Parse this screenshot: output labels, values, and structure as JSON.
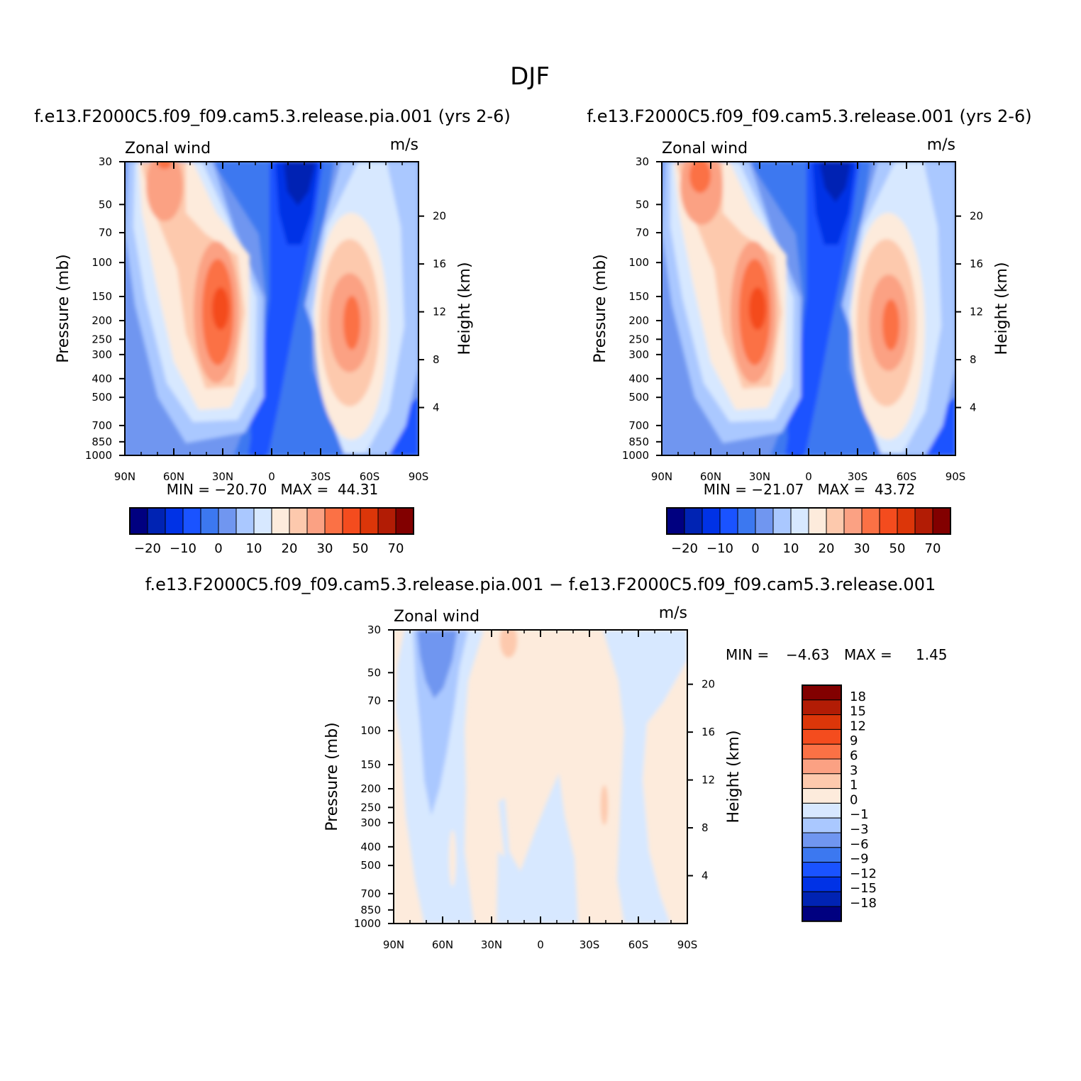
{
  "figure_title": "DJF",
  "colors": {
    "full": [
      "#000080",
      "#0023b3",
      "#0032e6",
      "#1a53ff",
      "#3c78f0",
      "#7096f0",
      "#aac8ff",
      "#d7e8ff",
      "#fdebdc",
      "#fdc9ad",
      "#fba183",
      "#fb7145",
      "#f44c1e",
      "#dc3609",
      "#b21c05",
      "#820000"
    ],
    "diff": [
      "#000080",
      "#0023b3",
      "#0032e6",
      "#1a53ff",
      "#3c78f0",
      "#7096f0",
      "#aac8ff",
      "#d7e8ff",
      "#fdebdc",
      "#fdc9ad",
      "#fba183",
      "#fb7145",
      "#f44c1e",
      "#dc3609",
      "#b21c05",
      "#820000"
    ]
  },
  "chart_data": [
    {
      "type": "contour",
      "title": "f.e13.F2000C5.f09_f09.cam5.3.release.pia.001 (yrs 2-6)",
      "left_string": "Zonal wind",
      "right_string": "m/s",
      "ylabel": "Pressure (mb)",
      "ylabel_right": "Height (km)",
      "xticks": [
        "90N",
        "60N",
        "30N",
        "0",
        "30S",
        "60S",
        "90S"
      ],
      "yticks": [
        "30",
        "50",
        "70",
        "100",
        "150",
        "200",
        "250",
        "300",
        "400",
        "500",
        "700",
        "850",
        "1000"
      ],
      "yticks_right": [
        "20",
        "16",
        "12",
        "8",
        "4"
      ],
      "stats": "MIN = −20.70   MAX =  44.31",
      "min": -20.7,
      "max": 44.31,
      "colorbar_labels": [
        "−20",
        "−10",
        "0",
        "10",
        "20",
        "30",
        "50",
        "70"
      ],
      "levels": [
        -25,
        -20,
        -15,
        -10,
        -5,
        0,
        5,
        10,
        15,
        20,
        25,
        30,
        40,
        50,
        60,
        70
      ]
    },
    {
      "type": "contour",
      "title": "f.e13.F2000C5.f09_f09.cam5.3.release.001 (yrs 2-6)",
      "left_string": "Zonal wind",
      "right_string": "m/s",
      "ylabel": "Pressure (mb)",
      "ylabel_right": "Height (km)",
      "xticks": [
        "90N",
        "60N",
        "30N",
        "0",
        "30S",
        "60S",
        "90S"
      ],
      "yticks": [
        "30",
        "50",
        "70",
        "100",
        "150",
        "200",
        "250",
        "300",
        "400",
        "500",
        "700",
        "850",
        "1000"
      ],
      "yticks_right": [
        "20",
        "16",
        "12",
        "8",
        "4"
      ],
      "stats": "MIN = −21.07   MAX =  43.72",
      "min": -21.07,
      "max": 43.72,
      "colorbar_labels": [
        "−20",
        "−10",
        "0",
        "10",
        "20",
        "30",
        "50",
        "70"
      ],
      "levels": [
        -25,
        -20,
        -15,
        -10,
        -5,
        0,
        5,
        10,
        15,
        20,
        25,
        30,
        40,
        50,
        60,
        70
      ]
    },
    {
      "type": "contour",
      "title": "f.e13.F2000C5.f09_f09.cam5.3.release.pia.001 − f.e13.F2000C5.f09_f09.cam5.3.release.001",
      "left_string": "Zonal wind",
      "right_string": "m/s",
      "ylabel": "Pressure (mb)",
      "ylabel_right": "Height (km)",
      "xticks": [
        "90N",
        "60N",
        "30N",
        "0",
        "30S",
        "60S",
        "90S"
      ],
      "yticks": [
        "30",
        "50",
        "70",
        "100",
        "150",
        "200",
        "250",
        "300",
        "400",
        "500",
        "700",
        "850",
        "1000"
      ],
      "yticks_right": [
        "20",
        "16",
        "12",
        "8",
        "4"
      ],
      "stats_min_label": "MIN =",
      "stats_min_value": "−4.63",
      "stats_max_label": "MAX =",
      "stats_max_value": "1.45",
      "min": -4.63,
      "max": 1.45,
      "colorbar_labels": [
        "18",
        "15",
        "12",
        "9",
        "6",
        "3",
        "1",
        "0",
        "−1",
        "−3",
        "−6",
        "−9",
        "−12",
        "−15",
        "−18"
      ],
      "levels": [
        -18,
        -15,
        -12,
        -9,
        -6,
        -3,
        -1,
        0,
        1,
        3,
        6,
        9,
        12,
        15,
        18
      ]
    }
  ]
}
